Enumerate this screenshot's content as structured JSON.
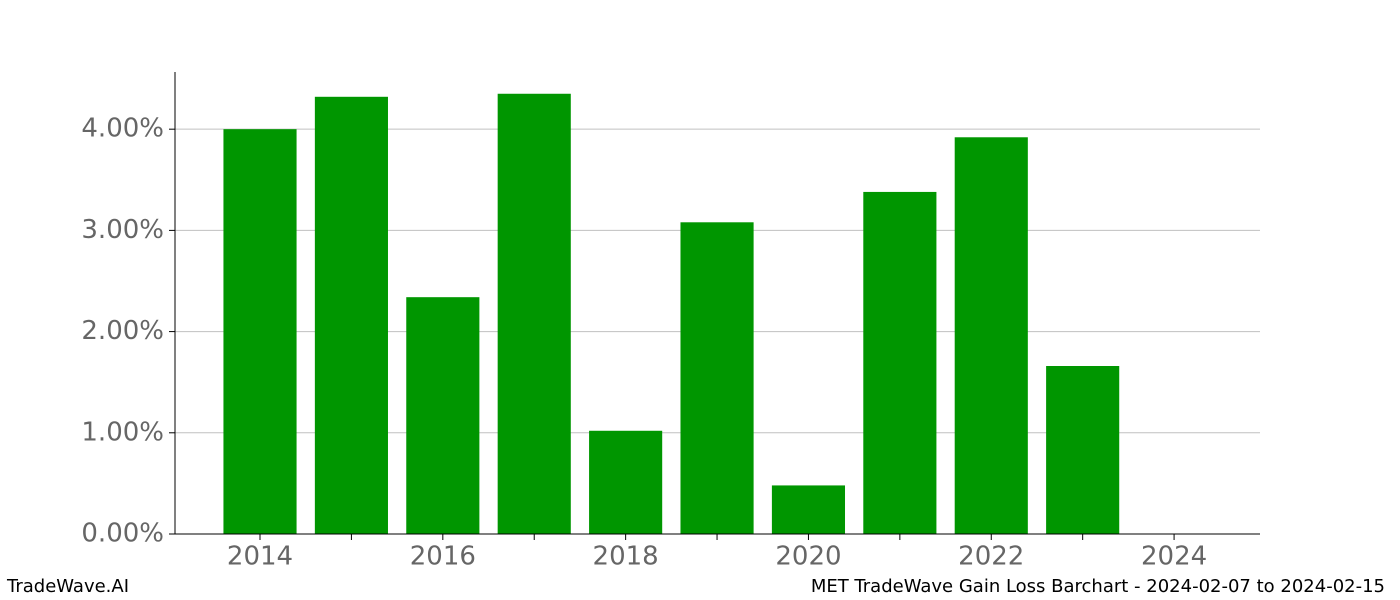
{
  "chart_data": {
    "type": "bar",
    "x": [
      2014,
      2015,
      2016,
      2017,
      2018,
      2019,
      2020,
      2021,
      2022,
      2023
    ],
    "values": [
      4.0,
      4.32,
      2.34,
      4.35,
      1.02,
      3.08,
      0.48,
      3.38,
      3.92,
      1.66
    ],
    "color": "#009600",
    "xlim": [
      2013.07,
      2024.94
    ],
    "xticks": [
      2014,
      2016,
      2018,
      2020,
      2022,
      2024
    ],
    "xminorticks": [
      2015,
      2017,
      2019,
      2021,
      2023
    ],
    "ylim": [
      0,
      4.565
    ],
    "yticks": [
      {
        "value": 0,
        "label": "0.00%"
      },
      {
        "value": 1,
        "label": "1.00%"
      },
      {
        "value": 2,
        "label": "2.00%"
      },
      {
        "value": 3,
        "label": "3.00%"
      },
      {
        "value": 4,
        "label": "4.00%"
      }
    ],
    "grid": true,
    "footer_left": "TradeWave.AI",
    "footer_right": "MET TradeWave Gain Loss Barchart - 2024-02-07 to 2024-02-15"
  }
}
